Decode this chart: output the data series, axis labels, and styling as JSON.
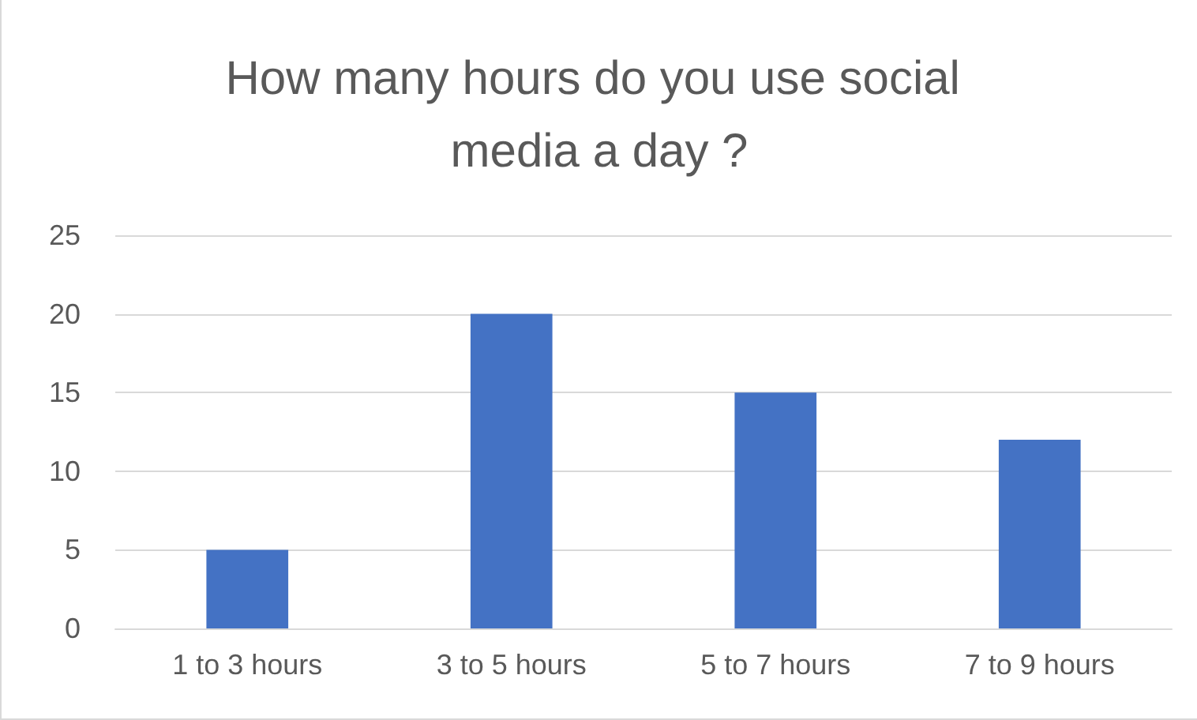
{
  "chart_data": {
    "type": "bar",
    "title": "How many hours do you use social media a day ?",
    "categories": [
      "1 to 3 hours",
      "3 to 5 hours",
      "5 to 7 hours",
      "7 to 9 hours"
    ],
    "values": [
      5,
      20,
      15,
      12
    ],
    "color": "#4472c4",
    "ylim": [
      0,
      25
    ],
    "yticks": [
      0,
      5,
      10,
      15,
      20,
      25
    ],
    "grid": "y"
  }
}
